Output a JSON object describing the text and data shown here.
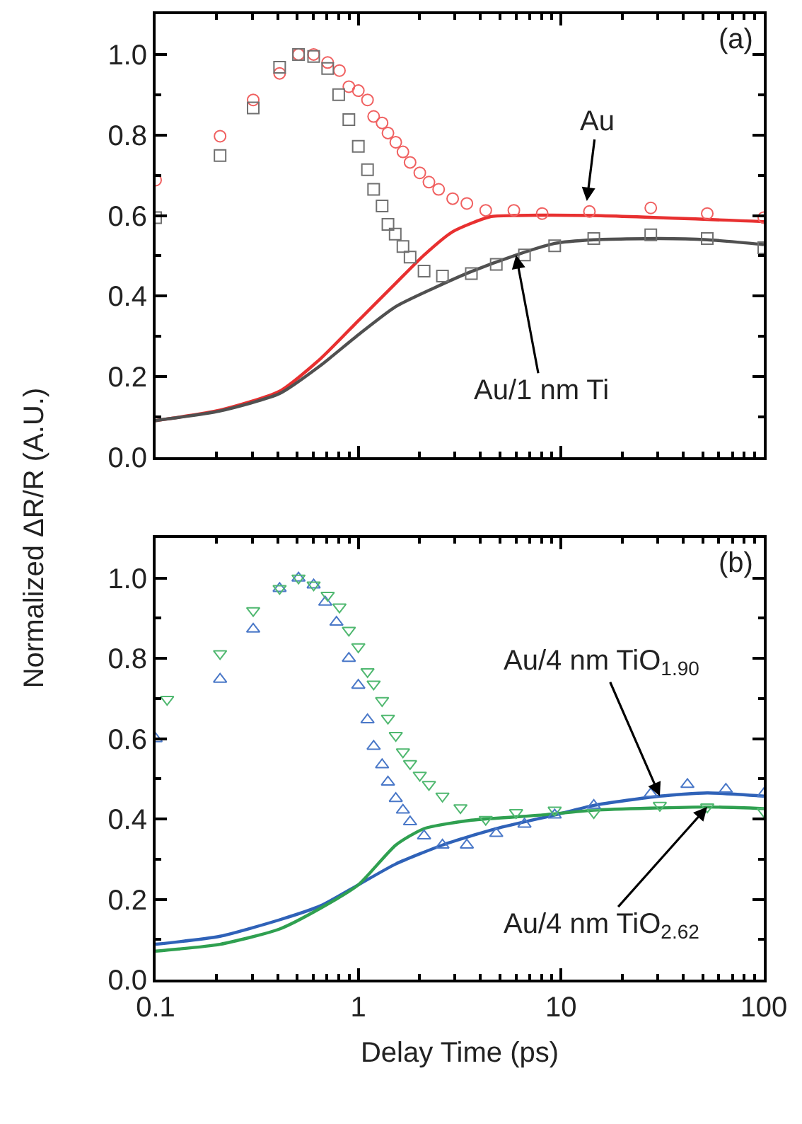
{
  "chart_data": [
    {
      "type": "scatter",
      "ylabel": "Normalized ΔR/R (A.U.)",
      "log": "x",
      "tick_labels": "y",
      "xlim": [
        0.1,
        100
      ],
      "xticks": [
        0.1,
        {
          "value": 0.2,
          "label": null
        },
        {
          "value": 0.3,
          "label": null
        },
        {
          "value": 0.4,
          "label": null
        },
        {
          "value": 0.5,
          "label": null
        },
        {
          "value": 0.6,
          "label": null
        },
        {
          "value": 0.7,
          "label": null
        },
        {
          "value": 0.8,
          "label": null
        },
        {
          "value": 0.9,
          "label": null
        },
        1,
        {
          "value": 2,
          "label": null
        },
        {
          "value": 3,
          "label": null
        },
        {
          "value": 4,
          "label": null
        },
        {
          "value": 5,
          "label": null
        },
        {
          "value": 6,
          "label": null
        },
        {
          "value": 7,
          "label": null
        },
        {
          "value": 8,
          "label": null
        },
        {
          "value": 9,
          "label": null
        },
        10,
        {
          "value": 20,
          "label": null
        },
        {
          "value": 30,
          "label": null
        },
        {
          "value": 40,
          "label": null
        },
        {
          "value": 50,
          "label": null
        },
        {
          "value": 60,
          "label": null
        },
        {
          "value": 70,
          "label": null
        },
        {
          "value": 80,
          "label": null
        },
        {
          "value": 90,
          "label": null
        },
        100
      ],
      "ylim": [
        0,
        1.1
      ],
      "yticks": [
        {
          "value": 0.0,
          "label": "0.0"
        },
        {
          "value": 0.1,
          "label": null
        },
        0.2,
        {
          "value": 0.3,
          "label": null
        },
        0.4,
        {
          "value": 0.5,
          "label": null
        },
        0.6,
        {
          "value": 0.7,
          "label": null
        },
        0.8,
        {
          "value": 0.9,
          "label": null
        },
        {
          "value": 1.0,
          "label": "1.0"
        }
      ],
      "annotations": [
        "(a)",
        {
          "text": "Au",
          "x": 13.4,
          "y": 0.636
        },
        {
          "text": "Au/1 nm Ti",
          "x": 6.0,
          "y": 0.502
        }
      ],
      "series": [
        {
          "type": "scatter",
          "marker": "circle",
          "color": "#f06060",
          "x": [
            0.1,
            0.208,
            0.303,
            0.409,
            0.507,
            0.602,
            0.706,
            0.807,
            0.898,
            1.0,
            1.11,
            1.19,
            1.31,
            1.4,
            1.53,
            1.66,
            1.8,
            2.01,
            2.23,
            2.49,
            2.92,
            3.43,
            4.25,
            5.85,
            8.07,
            13.8,
            27.7,
            52.6,
            100
          ],
          "values": [
            0.688,
            0.797,
            0.887,
            0.953,
            1.0,
            1.0,
            0.98,
            0.96,
            0.92,
            0.91,
            0.887,
            0.846,
            0.83,
            0.805,
            0.782,
            0.758,
            0.732,
            0.706,
            0.683,
            0.665,
            0.642,
            0.63,
            0.613,
            0.613,
            0.605,
            0.61,
            0.619,
            0.605,
            0.595
          ]
        },
        {
          "type": "scatter",
          "marker": "square",
          "color": "#707070",
          "x": [
            0.1,
            0.208,
            0.303,
            0.409,
            0.507,
            0.602,
            0.706,
            0.8,
            0.898,
            1.0,
            1.11,
            1.19,
            1.31,
            1.4,
            1.52,
            1.66,
            1.8,
            2.11,
            2.6,
            3.61,
            4.79,
            6.6,
            9.3,
            14.5,
            27.7,
            52.6,
            100
          ],
          "values": [
            0.595,
            0.749,
            0.867,
            0.968,
            1.0,
            0.995,
            0.965,
            0.9,
            0.838,
            0.772,
            0.714,
            0.665,
            0.624,
            0.578,
            0.554,
            0.523,
            0.497,
            0.462,
            0.45,
            0.456,
            0.479,
            0.502,
            0.525,
            0.543,
            0.552,
            0.543,
            0.52
          ]
        },
        {
          "type": "line",
          "marker": "none",
          "line_style": "solid",
          "color": "#e83030",
          "x": [
            0.1,
            0.208,
            0.409,
            0.652,
            1.0,
            1.53,
            2.11,
            2.92,
            4.46,
            6.0,
            14.5,
            100
          ],
          "values": [
            0.091,
            0.117,
            0.164,
            0.245,
            0.339,
            0.432,
            0.502,
            0.56,
            0.597,
            0.6,
            0.6,
            0.585
          ]
        },
        {
          "type": "line",
          "marker": "none",
          "line_style": "solid",
          "color": "#505050",
          "x": [
            0.1,
            0.208,
            0.409,
            0.652,
            1.0,
            1.53,
            2.36,
            3.61,
            6.0,
            9.3,
            14.5,
            30.7,
            52.6,
            100
          ],
          "values": [
            0.091,
            0.115,
            0.158,
            0.228,
            0.304,
            0.374,
            0.42,
            0.461,
            0.502,
            0.531,
            0.54,
            0.543,
            0.54,
            0.528
          ]
        }
      ]
    },
    {
      "type": "scatter",
      "xlabel": "Delay Time (ps)",
      "log": "x",
      "xlim": [
        0.1,
        100
      ],
      "xticks": [
        0.1,
        {
          "value": 0.2,
          "label": null
        },
        {
          "value": 0.3,
          "label": null
        },
        {
          "value": 0.4,
          "label": null
        },
        {
          "value": 0.5,
          "label": null
        },
        {
          "value": 0.6,
          "label": null
        },
        {
          "value": 0.7,
          "label": null
        },
        {
          "value": 0.8,
          "label": null
        },
        {
          "value": 0.9,
          "label": null
        },
        1,
        {
          "value": 2,
          "label": null
        },
        {
          "value": 3,
          "label": null
        },
        {
          "value": 4,
          "label": null
        },
        {
          "value": 5,
          "label": null
        },
        {
          "value": 6,
          "label": null
        },
        {
          "value": 7,
          "label": null
        },
        {
          "value": 8,
          "label": null
        },
        {
          "value": 9,
          "label": null
        },
        10,
        {
          "value": 20,
          "label": null
        },
        {
          "value": 30,
          "label": null
        },
        {
          "value": 40,
          "label": null
        },
        {
          "value": 50,
          "label": null
        },
        {
          "value": 60,
          "label": null
        },
        {
          "value": 70,
          "label": null
        },
        {
          "value": 80,
          "label": null
        },
        {
          "value": 90,
          "label": null
        },
        100
      ],
      "ylim": [
        0,
        1.1
      ],
      "yticks": [
        {
          "value": 0.0,
          "label": "0.0"
        },
        {
          "value": 0.1,
          "label": null
        },
        0.2,
        {
          "value": 0.3,
          "label": null
        },
        0.4,
        {
          "value": 0.5,
          "label": null
        },
        0.6,
        {
          "value": 0.7,
          "label": null
        },
        0.8,
        {
          "value": 0.9,
          "label": null
        },
        {
          "value": 1.0,
          "label": "1.0"
        }
      ],
      "annotations": [
        "(b)",
        {
          "text": "Au/4 nm TiO$_{1.90}$",
          "x": 30.7,
          "y": 0.457
        },
        {
          "text": "Au/4 nm TiO$_{2.62}$",
          "x": 52.6,
          "y": 0.43
        }
      ],
      "series": [
        {
          "type": "scatter",
          "marker": "triangle",
          "color": "#4a78c8",
          "x": [
            0.1,
            0.208,
            0.303,
            0.409,
            0.507,
            0.602,
            0.687,
            0.78,
            0.898,
            1.0,
            1.11,
            1.19,
            1.31,
            1.4,
            1.53,
            1.66,
            1.8,
            2.11,
            2.6,
            3.43,
            4.79,
            6.6,
            9.3,
            14.5,
            27.7,
            42,
            65,
            100
          ],
          "values": [
            0.6,
            0.748,
            0.873,
            0.974,
            1.0,
            0.983,
            0.94,
            0.89,
            0.8,
            0.733,
            0.647,
            0.581,
            0.535,
            0.492,
            0.451,
            0.422,
            0.393,
            0.358,
            0.335,
            0.335,
            0.364,
            0.387,
            0.41,
            0.434,
            0.463,
            0.486,
            0.474,
            0.463
          ]
        },
        {
          "type": "scatter",
          "marker": "triangle-down",
          "color": "#50b870",
          "x": [
            0.114,
            0.208,
            0.303,
            0.409,
            0.507,
            0.602,
            0.706,
            0.807,
            0.898,
            1.0,
            1.11,
            1.19,
            1.31,
            1.4,
            1.53,
            1.66,
            1.8,
            2.01,
            2.23,
            2.6,
            3.19,
            4.25,
            6.0,
            9.3,
            14.5,
            30.7,
            52.6,
            100
          ],
          "values": [
            0.698,
            0.812,
            0.919,
            0.974,
            1.0,
            0.983,
            0.957,
            0.928,
            0.87,
            0.829,
            0.767,
            0.736,
            0.695,
            0.651,
            0.608,
            0.567,
            0.538,
            0.509,
            0.486,
            0.457,
            0.428,
            0.399,
            0.416,
            0.422,
            0.416,
            0.434,
            0.43,
            0.419
          ]
        },
        {
          "type": "line",
          "marker": "none",
          "line_style": "solid",
          "color": "#2f62b8",
          "x": [
            0.1,
            0.208,
            0.409,
            0.652,
            1.0,
            1.53,
            2.6,
            4.79,
            9.3,
            14.5,
            30.7,
            52.6,
            100
          ],
          "values": [
            0.088,
            0.108,
            0.149,
            0.184,
            0.236,
            0.288,
            0.335,
            0.376,
            0.41,
            0.434,
            0.457,
            0.465,
            0.457
          ]
        },
        {
          "type": "line",
          "marker": "none",
          "line_style": "solid",
          "color": "#2fa050",
          "x": [
            0.1,
            0.208,
            0.409,
            0.652,
            1.0,
            1.53,
            2.11,
            3.61,
            8.07,
            14.5,
            52.6,
            100
          ],
          "values": [
            0.071,
            0.088,
            0.126,
            0.178,
            0.236,
            0.335,
            0.376,
            0.397,
            0.41,
            0.422,
            0.43,
            0.426
          ]
        }
      ]
    }
  ]
}
